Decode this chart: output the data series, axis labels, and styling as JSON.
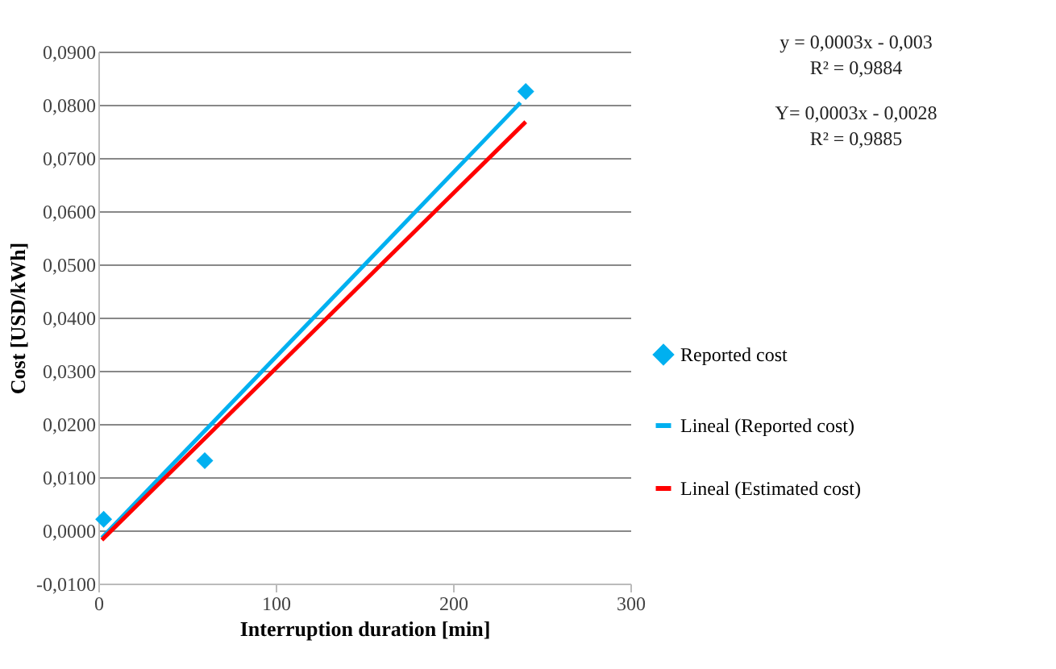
{
  "chart_data": {
    "type": "scatter",
    "xlabel": "Interruption duration [min]",
    "ylabel": "Cost [USD/kWh]",
    "series": [
      {
        "name": "Reported cost",
        "type": "scatter",
        "marker": "diamond",
        "color": "#00b0f0",
        "x": [
          3,
          60,
          241
        ],
        "values": [
          0.0021,
          0.0131,
          0.0825
        ]
      },
      {
        "name": "Lineal (Reported cost)",
        "type": "line",
        "color": "#00b0f0",
        "x": [
          2,
          238
        ],
        "values": [
          -0.0014,
          0.0804
        ]
      },
      {
        "name": "Lineal (Estimated cost)",
        "type": "line",
        "color": "#ff0000",
        "x": [
          2,
          241
        ],
        "values": [
          -0.0018,
          0.0768
        ]
      }
    ],
    "xlim": [
      0,
      300
    ],
    "xticks": [
      0,
      100,
      200,
      300
    ],
    "ylim": [
      -0.01,
      0.09
    ],
    "yticks": [
      {
        "value": -0.01,
        "label": "-0,0100"
      },
      {
        "value": 0.0,
        "label": "0,0000"
      },
      {
        "value": 0.01,
        "label": "0,0100"
      },
      {
        "value": 0.02,
        "label": "0,0200"
      },
      {
        "value": 0.03,
        "label": "0,0300"
      },
      {
        "value": 0.04,
        "label": "0,0400"
      },
      {
        "value": 0.05,
        "label": "0,0500"
      },
      {
        "value": 0.06,
        "label": "0,0600"
      },
      {
        "value": 0.07,
        "label": "0,0700"
      },
      {
        "value": 0.08,
        "label": "0,0800"
      },
      {
        "value": 0.09,
        "label": "0,0900"
      }
    ],
    "grid": "y",
    "legend": "right",
    "annotations": [
      "y = 0,0003x - 0,003",
      "R² = 0,9884",
      "Y= 0,0003x - 0,0028",
      "R² = 0,9885"
    ]
  }
}
